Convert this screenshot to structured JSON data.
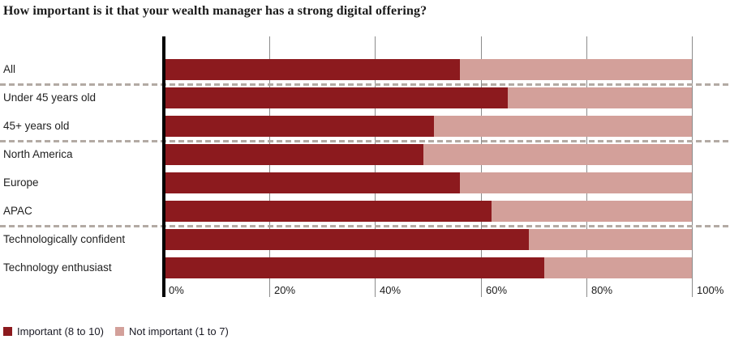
{
  "chart_data": {
    "type": "bar",
    "orientation": "horizontal",
    "stacked": true,
    "title": "How important is it that your wealth manager has a strong digital offering?",
    "categories": [
      "All",
      "Under 45 years old",
      "45+ years old",
      "North America",
      "Europe",
      "APAC",
      "Technologically confident",
      "Technology enthusiast"
    ],
    "series": [
      {
        "name": "Important (8 to 10)",
        "color": "#8c1a1e",
        "values": [
          56,
          65,
          51,
          49,
          56,
          62,
          69,
          72
        ]
      },
      {
        "name": "Not important (1 to 7)",
        "color": "#d3a09a",
        "values": [
          44,
          35,
          49,
          51,
          44,
          38,
          31,
          28
        ]
      }
    ],
    "x_ticks": [
      "0%",
      "20%",
      "40%",
      "60%",
      "80%",
      "100%"
    ],
    "xlim": [
      0,
      100
    ],
    "group_separators_after_rows": [
      0,
      2,
      5
    ],
    "legend_position": "bottom-left",
    "grid": "vertical",
    "style": {
      "axis_color": "#000000",
      "gridline_color": "#8c8c8c",
      "separator_color": "#b3aaa4",
      "background": "#ffffff"
    }
  }
}
